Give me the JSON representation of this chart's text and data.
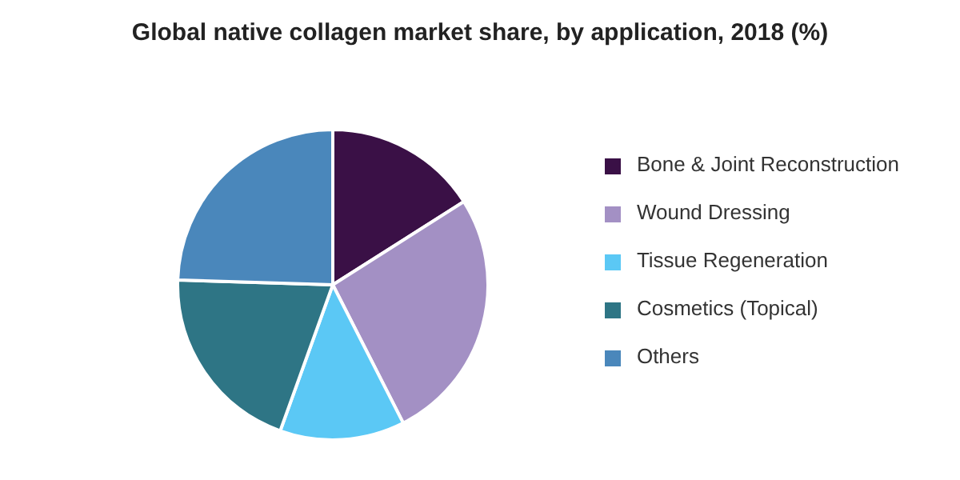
{
  "chart_data": {
    "type": "pie",
    "title": "Global native collagen market share, by application, 2018 (%)",
    "categories": [
      "Bone & Joint Reconstruction",
      "Wound Dressing",
      "Tissue Regeneration",
      "Cosmetics (Topical)",
      "Others"
    ],
    "values": [
      16,
      26.5,
      13,
      20,
      24.5
    ],
    "colors": [
      "#3a1046",
      "#a390c4",
      "#5bc8f5",
      "#2e7585",
      "#4a87bb"
    ],
    "legend": "right"
  }
}
